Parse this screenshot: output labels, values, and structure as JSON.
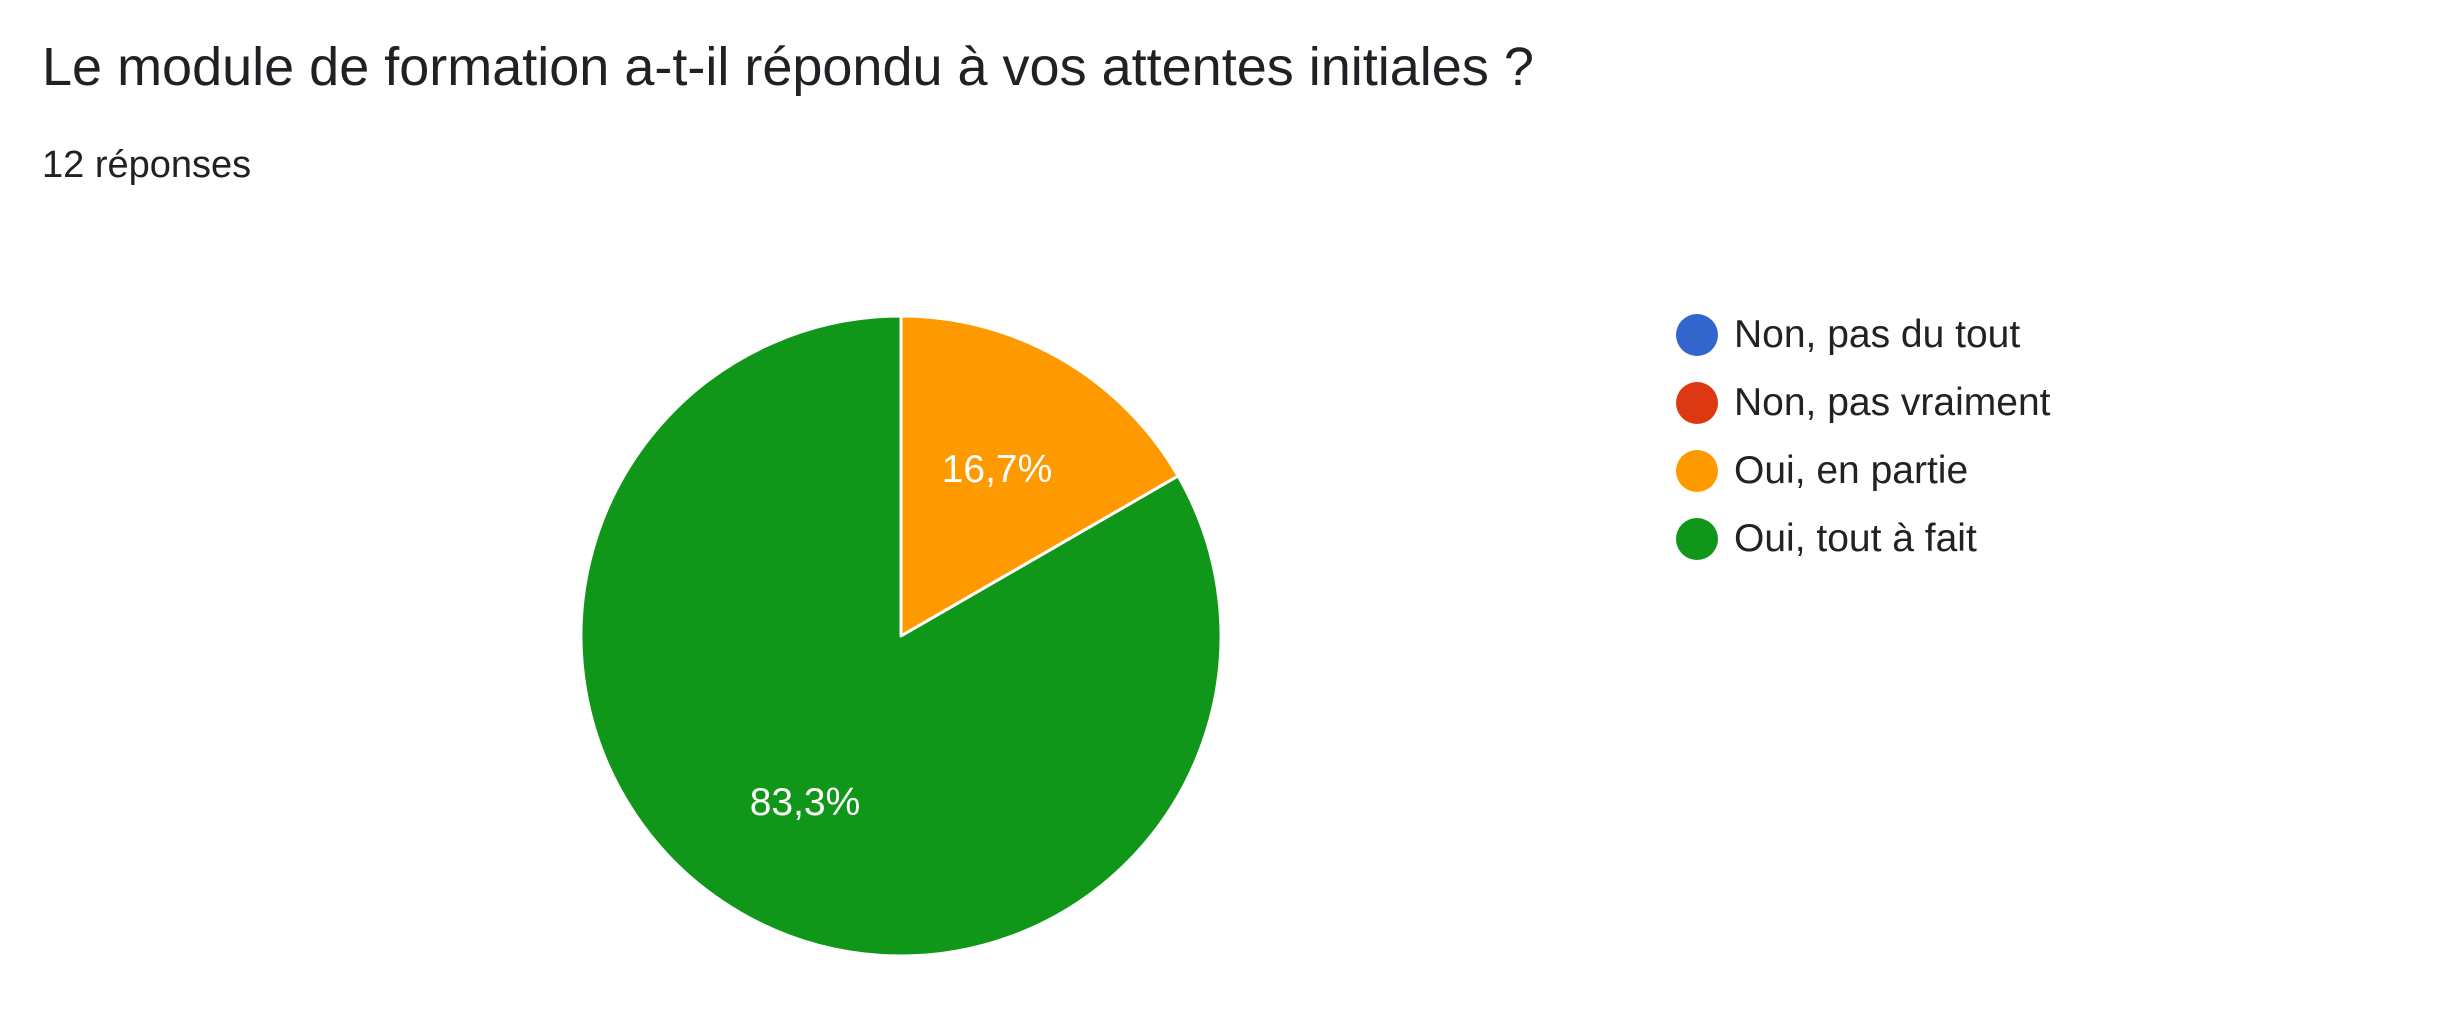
{
  "question": {
    "title": "Le module de formation a-t-il répondu à vos attentes initiales ?",
    "response_count": "12 réponses"
  },
  "chart_data": {
    "type": "pie",
    "slices": [
      {
        "label": "Non, pas du tout",
        "value": 0,
        "percent_label": "",
        "color": "#3366cc"
      },
      {
        "label": "Non, pas vraiment",
        "value": 0,
        "percent_label": "",
        "color": "#dc3912"
      },
      {
        "label": "Oui, en partie",
        "value": 2,
        "percent_label": "16,7%",
        "color": "#ff9900"
      },
      {
        "label": "Oui, tout à fait",
        "value": 10,
        "percent_label": "83,3%",
        "color": "#109618"
      }
    ],
    "start_angle_deg": 90,
    "direction": "clockwise",
    "legend_position": "right"
  }
}
